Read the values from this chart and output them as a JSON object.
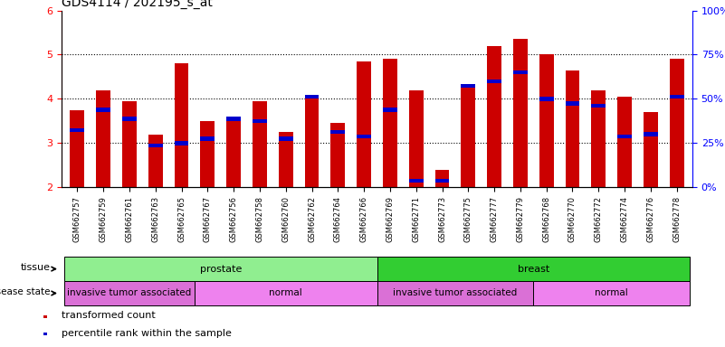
{
  "title": "GDS4114 / 202195_s_at",
  "samples": [
    "GSM662757",
    "GSM662759",
    "GSM662761",
    "GSM662763",
    "GSM662765",
    "GSM662767",
    "GSM662756",
    "GSM662758",
    "GSM662760",
    "GSM662762",
    "GSM662764",
    "GSM662766",
    "GSM662769",
    "GSM662771",
    "GSM662773",
    "GSM662775",
    "GSM662777",
    "GSM662779",
    "GSM662768",
    "GSM662770",
    "GSM662772",
    "GSM662774",
    "GSM662776",
    "GSM662778"
  ],
  "bar_values": [
    3.75,
    4.2,
    3.95,
    3.2,
    4.8,
    3.5,
    3.6,
    3.95,
    3.25,
    4.0,
    3.45,
    4.85,
    4.9,
    4.2,
    2.4,
    4.3,
    5.2,
    5.35,
    5.0,
    4.65,
    4.2,
    4.05,
    3.7,
    4.9
  ],
  "blue_values": [
    3.3,
    3.75,
    3.55,
    2.95,
    3.0,
    3.1,
    3.55,
    3.5,
    3.1,
    4.05,
    3.25,
    3.15,
    3.75,
    2.15,
    2.15,
    4.3,
    4.4,
    4.6,
    4.0,
    3.9,
    3.85,
    3.15,
    3.2,
    4.05
  ],
  "tissue_groups": [
    {
      "label": "prostate",
      "start": 0,
      "end": 11,
      "color": "#90EE90"
    },
    {
      "label": "breast",
      "start": 12,
      "end": 23,
      "color": "#32CD32"
    }
  ],
  "disease_groups": [
    {
      "label": "invasive tumor associated",
      "start": 0,
      "end": 4,
      "color": "#DA70D6"
    },
    {
      "label": "normal",
      "start": 5,
      "end": 11,
      "color": "#EE82EE"
    },
    {
      "label": "invasive tumor associated",
      "start": 12,
      "end": 17,
      "color": "#DA70D6"
    },
    {
      "label": "normal",
      "start": 18,
      "end": 23,
      "color": "#EE82EE"
    }
  ],
  "bar_color": "#CC0000",
  "blue_color": "#0000CC",
  "ylim_left": [
    2,
    6
  ],
  "ylim_right": [
    0,
    100
  ],
  "yticks_left": [
    2,
    3,
    4,
    5,
    6
  ],
  "yticks_right": [
    0,
    25,
    50,
    75,
    100
  ],
  "legend_items": [
    {
      "label": "transformed count",
      "color": "#CC0000"
    },
    {
      "label": "percentile rank within the sample",
      "color": "#0000CC"
    }
  ],
  "fig_width": 8.01,
  "fig_height": 3.84,
  "dpi": 100
}
